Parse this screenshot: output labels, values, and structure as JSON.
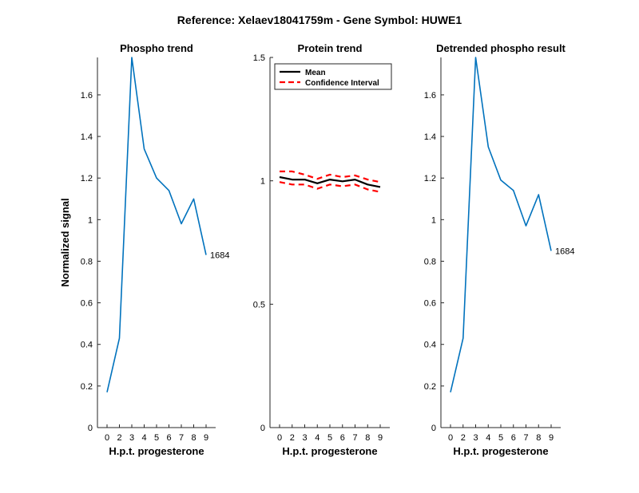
{
  "figure_title": "Reference:  Xelaev18041759m - Gene Symbol:  HUWE1",
  "colors": {
    "series": "#0072BD",
    "mean": "#000000",
    "ci": "#FF0000",
    "axis": "#262626"
  },
  "chart_data": [
    {
      "type": "line",
      "title": "Phospho trend",
      "xlabel": "H.p.t. progesterone",
      "ylabel": "Normalized signal",
      "categories": [
        "0",
        "2",
        "3",
        "4",
        "5",
        "6",
        "7",
        "8",
        "9"
      ],
      "ylim": [
        0,
        1.78
      ],
      "yticks": [
        "0",
        "0.2",
        "0.4",
        "0.6",
        "0.8",
        "1",
        "1.2",
        "1.4",
        "1.6"
      ],
      "series": [
        {
          "values": [
            0.17,
            0.43,
            1.78,
            1.34,
            1.2,
            1.14,
            0.98,
            1.1,
            0.83
          ]
        }
      ],
      "annotation": "1684"
    },
    {
      "type": "line",
      "title": "Protein trend",
      "xlabel": "H.p.t. progesterone",
      "ylabel": "",
      "categories": [
        "0",
        "2",
        "3",
        "4",
        "5",
        "6",
        "7",
        "8",
        "9"
      ],
      "ylim": [
        0,
        1.5
      ],
      "yticks": [
        "0",
        "0.5",
        "1",
        "1.5"
      ],
      "series": [
        {
          "name": "Mean",
          "values": [
            1.015,
            1.005,
            1.005,
            0.99,
            1.005,
            0.998,
            1.005,
            0.985,
            0.975
          ]
        },
        {
          "name": "Confidence Interval",
          "values": [
            1.038,
            1.038,
            1.025,
            1.008,
            1.025,
            1.015,
            1.022,
            1.005,
            0.995
          ]
        },
        {
          "values": [
            0.995,
            0.985,
            0.985,
            0.968,
            0.985,
            0.978,
            0.985,
            0.965,
            0.955
          ]
        }
      ],
      "legend": [
        "Mean",
        "Confidence Interval"
      ],
      "legend_position": "top-left"
    },
    {
      "type": "line",
      "title": "Detrended phospho result",
      "xlabel": "H.p.t. progesterone",
      "ylabel": "",
      "categories": [
        "0",
        "2",
        "3",
        "4",
        "5",
        "6",
        "7",
        "8",
        "9"
      ],
      "ylim": [
        0,
        1.78
      ],
      "yticks": [
        "0",
        "0.2",
        "0.4",
        "0.6",
        "0.8",
        "1",
        "1.2",
        "1.4",
        "1.6"
      ],
      "series": [
        {
          "values": [
            0.17,
            0.43,
            1.78,
            1.35,
            1.19,
            1.14,
            0.97,
            1.12,
            0.85
          ]
        }
      ],
      "annotation": "1684"
    }
  ]
}
